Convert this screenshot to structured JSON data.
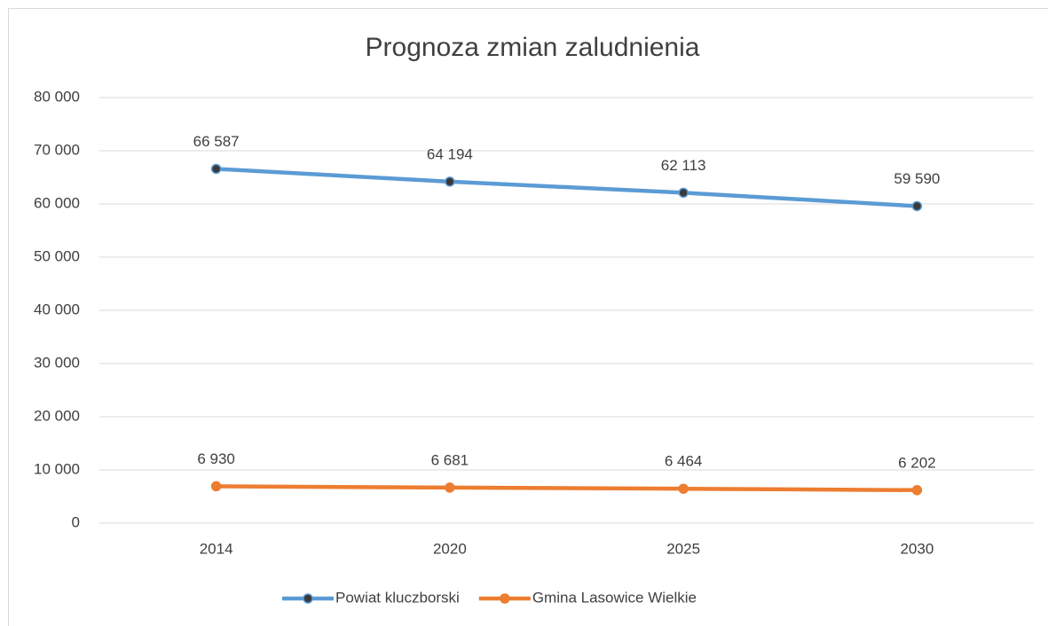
{
  "chart_data": {
    "type": "line",
    "title": "Prognoza zmian zaludnienia",
    "categories": [
      "2014",
      "2020",
      "2025",
      "2030"
    ],
    "series": [
      {
        "name": "Powiat kluczborski",
        "color": "#5b9bd5",
        "marker_fill": "#3a3a3a",
        "values": [
          66587,
          64194,
          62113,
          59590
        ],
        "value_labels": [
          "66 587",
          "64 194",
          "62 113",
          "59 590"
        ]
      },
      {
        "name": "Gmina Lasowice Wielkie",
        "color": "#ed7d31",
        "marker_fill": "#ed7d31",
        "values": [
          6930,
          6681,
          6464,
          6202
        ],
        "value_labels": [
          "6 930",
          "6 681",
          "6 464",
          "6 202"
        ]
      }
    ],
    "ylim": [
      0,
      80000
    ],
    "yticks": [
      {
        "value": 0,
        "label": "0"
      },
      {
        "value": 10000,
        "label": "10 000"
      },
      {
        "value": 20000,
        "label": "20 000"
      },
      {
        "value": 30000,
        "label": "30 000"
      },
      {
        "value": 40000,
        "label": "40 000"
      },
      {
        "value": 50000,
        "label": "50 000"
      },
      {
        "value": 60000,
        "label": "60 000"
      },
      {
        "value": 70000,
        "label": "70 000"
      },
      {
        "value": 80000,
        "label": "80 000"
      }
    ],
    "grid": true,
    "legend": "bottom"
  }
}
